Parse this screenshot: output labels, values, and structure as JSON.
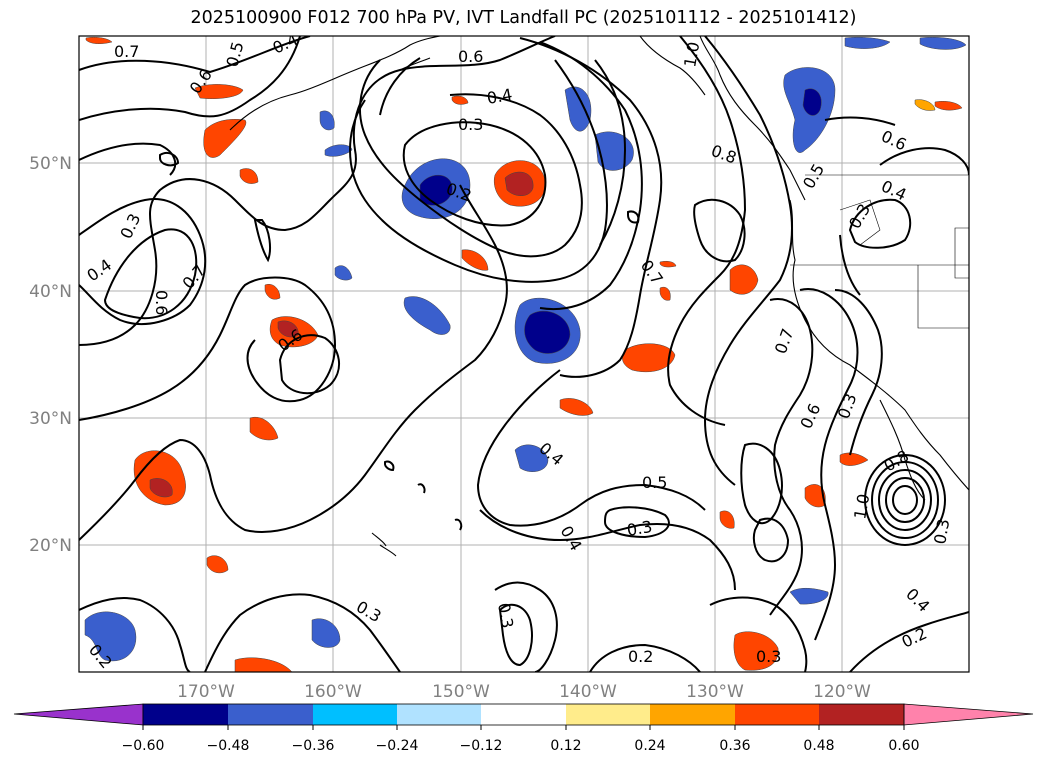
{
  "title": "2025100900 F012 700 hPa PV, IVT Landfall PC (2025101112 - 2025101412)",
  "map": {
    "latitude_labels": [
      "50°N",
      "40°N",
      "30°N",
      "20°N"
    ],
    "longitude_labels": [
      "170°W",
      "160°W",
      "150°W",
      "140°W",
      "130°W",
      "120°W"
    ],
    "contour_labels": [
      {
        "text": "0.7"
      },
      {
        "text": "0.5"
      },
      {
        "text": "0.4"
      },
      {
        "text": "0.6"
      },
      {
        "text": "0.6"
      },
      {
        "text": "1.0"
      },
      {
        "text": "0.4"
      },
      {
        "text": "0.3"
      },
      {
        "text": "0.2"
      },
      {
        "text": "0.8"
      },
      {
        "text": "0.5"
      },
      {
        "text": "0.6"
      },
      {
        "text": "0.4"
      },
      {
        "text": "0.3"
      },
      {
        "text": "0.3"
      },
      {
        "text": "0.4"
      },
      {
        "text": "0.6"
      },
      {
        "text": "0.7"
      },
      {
        "text": "0.6"
      },
      {
        "text": "0.7"
      },
      {
        "text": "0.7"
      },
      {
        "text": "0.6"
      },
      {
        "text": "0.3"
      },
      {
        "text": "0.4"
      },
      {
        "text": "0.5"
      },
      {
        "text": "0.3"
      },
      {
        "text": "0.4"
      },
      {
        "text": "0.8"
      },
      {
        "text": "1.0"
      },
      {
        "text": "0.3"
      },
      {
        "text": "0.2"
      },
      {
        "text": "0.3"
      },
      {
        "text": "0.2"
      },
      {
        "text": "0.3"
      },
      {
        "text": "0.4"
      },
      {
        "text": "0.2"
      },
      {
        "text": "0.3"
      }
    ]
  },
  "colorbar": {
    "colors": [
      "#9932CC",
      "#00008B",
      "#3A5FCD",
      "#00BFFF",
      "#B0E2FF",
      "#FFFFFF",
      "#FFEC8B",
      "#FFA500",
      "#FF4500",
      "#B22222",
      "#FF82AB"
    ],
    "tick_labels": [
      "−0.60",
      "−0.48",
      "−0.36",
      "−0.24",
      "−0.12",
      "0.12",
      "0.24",
      "0.36",
      "0.48",
      "0.60"
    ]
  },
  "colors": {
    "negative_strong": "#00008B",
    "negative_mid": "#3A5FCD",
    "negative_weak": "#00BFFF",
    "positive_weak": "#FFA500",
    "positive_mid": "#FF4500",
    "positive_strong": "#B22222"
  }
}
